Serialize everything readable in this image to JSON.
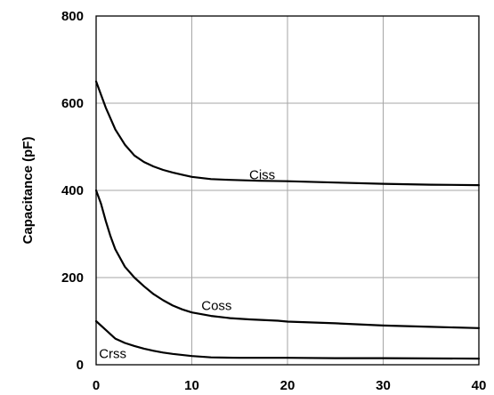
{
  "chart_data": {
    "type": "line",
    "title": "",
    "xlabel": "",
    "ylabel": "Capacitance (pF)",
    "xlim": [
      0,
      40
    ],
    "ylim": [
      0,
      800
    ],
    "x_ticks": [
      0,
      10,
      20,
      30,
      40
    ],
    "y_ticks": [
      0,
      200,
      400,
      600,
      800
    ],
    "grid": true,
    "series": [
      {
        "name": "Ciss",
        "points": [
          [
            0,
            650
          ],
          [
            0.5,
            620
          ],
          [
            1,
            590
          ],
          [
            2,
            540
          ],
          [
            3,
            505
          ],
          [
            4,
            480
          ],
          [
            5,
            465
          ],
          [
            6,
            455
          ],
          [
            7,
            447
          ],
          [
            8,
            441
          ],
          [
            9,
            436
          ],
          [
            10,
            431
          ],
          [
            12,
            426
          ],
          [
            14,
            424
          ],
          [
            17,
            422
          ],
          [
            20,
            421
          ],
          [
            25,
            418
          ],
          [
            30,
            415
          ],
          [
            35,
            413
          ],
          [
            40,
            412
          ]
        ]
      },
      {
        "name": "Coss",
        "points": [
          [
            0,
            400
          ],
          [
            0.5,
            370
          ],
          [
            1,
            330
          ],
          [
            1.5,
            295
          ],
          [
            2,
            265
          ],
          [
            3,
            225
          ],
          [
            4,
            200
          ],
          [
            5,
            180
          ],
          [
            6,
            162
          ],
          [
            7,
            148
          ],
          [
            8,
            136
          ],
          [
            9,
            127
          ],
          [
            10,
            120
          ],
          [
            12,
            112
          ],
          [
            14,
            107
          ],
          [
            16,
            104
          ],
          [
            19,
            101
          ],
          [
            20,
            99
          ],
          [
            25,
            95
          ],
          [
            30,
            90
          ],
          [
            35,
            87
          ],
          [
            40,
            84
          ]
        ]
      },
      {
        "name": "Crss",
        "points": [
          [
            0,
            100
          ],
          [
            1,
            80
          ],
          [
            2,
            60
          ],
          [
            3,
            50
          ],
          [
            4,
            43
          ],
          [
            5,
            37
          ],
          [
            6,
            32
          ],
          [
            7,
            28
          ],
          [
            8,
            25
          ],
          [
            10,
            20
          ],
          [
            12,
            17
          ],
          [
            15,
            16
          ],
          [
            20,
            16
          ],
          [
            25,
            15
          ],
          [
            30,
            15
          ],
          [
            40,
            14
          ]
        ]
      }
    ],
    "annotations": [
      {
        "text": "Ciss",
        "x": 16,
        "y": 436
      },
      {
        "text": "Coss",
        "x": 11,
        "y": 136
      },
      {
        "text": "Crss",
        "x": 0.3,
        "y": 26
      }
    ]
  }
}
